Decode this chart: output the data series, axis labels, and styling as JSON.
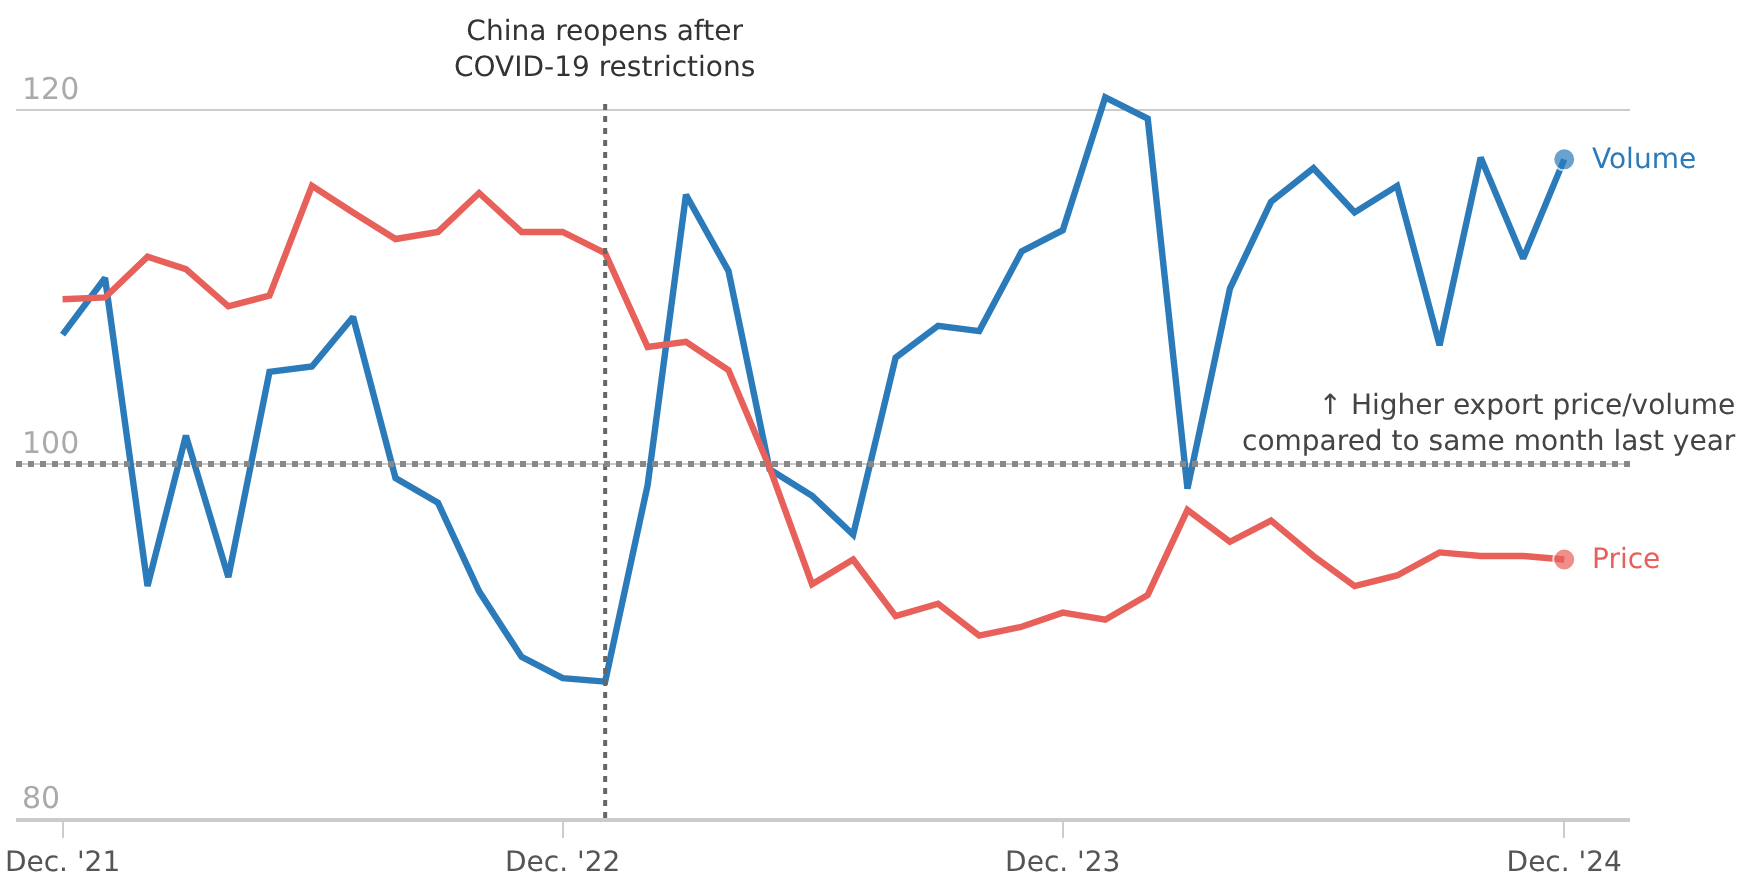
{
  "chart_data": {
    "type": "line",
    "x": [
      "2021-12",
      "2022-01",
      "2022-02",
      "2022-03",
      "2022-04",
      "2022-05",
      "2022-06",
      "2022-07",
      "2022-08",
      "2022-09",
      "2022-10",
      "2022-11",
      "2022-12",
      "2023-01",
      "2023-02",
      "2023-03",
      "2023-04",
      "2023-05",
      "2023-06",
      "2023-07",
      "2023-08",
      "2023-09",
      "2023-10",
      "2023-11",
      "2023-12",
      "2024-01",
      "2024-02",
      "2024-03",
      "2024-04",
      "2024-05",
      "2024-06",
      "2024-07",
      "2024-08",
      "2024-09",
      "2024-10",
      "2024-11",
      "2024-12"
    ],
    "series": [
      {
        "name": "Volume",
        "color": "#2b7bba",
        "values": [
          107.3,
          110.5,
          93.1,
          101.6,
          93.6,
          105.2,
          105.5,
          108.3,
          99.2,
          97.8,
          92.8,
          89.1,
          87.9,
          87.7,
          98.8,
          115.2,
          110.9,
          99.7,
          98.2,
          96.0,
          106.0,
          107.8,
          107.5,
          112.0,
          113.2,
          120.7,
          119.5,
          98.6,
          109.9,
          114.8,
          116.7,
          114.2,
          115.7,
          106.7,
          117.3,
          111.6,
          117.2
        ]
      },
      {
        "name": "Price",
        "color": "#e8605a",
        "values": [
          109.3,
          109.4,
          111.7,
          111.0,
          108.9,
          109.5,
          115.7,
          114.2,
          112.7,
          113.1,
          115.3,
          113.1,
          113.1,
          111.9,
          106.6,
          106.9,
          105.3,
          99.8,
          93.2,
          94.6,
          91.4,
          92.1,
          90.3,
          90.8,
          91.6,
          91.2,
          92.6,
          97.4,
          95.6,
          96.8,
          94.8,
          93.1,
          93.7,
          95.0,
          94.8,
          94.8,
          94.6
        ]
      }
    ],
    "xlim": [
      "2021-10-28",
      "2025-01-18"
    ],
    "xticks": [
      {
        "value": "2021-12",
        "label": "Dec. '21"
      },
      {
        "value": "2022-12",
        "label": "Dec. '22"
      },
      {
        "value": "2023-12",
        "label": "Dec. '23"
      },
      {
        "value": "2024-12",
        "label": "Dec. '24"
      }
    ],
    "ylim": [
      80,
      126.2
    ],
    "yticks": [
      80,
      100,
      120
    ],
    "grid": "y",
    "legend": false,
    "marker": "none",
    "line_style": "solid",
    "ref_lines": [
      {
        "axis": "x",
        "value": "2023-01",
        "label": "China reopens after\nCOVID-19 restrictions",
        "color": "#666666",
        "line_style": "dotted"
      },
      {
        "axis": "y",
        "value": 100,
        "label": "↑ Higher export price/volume\ncompared to same month last year",
        "color": "#888888",
        "line_style": "dotted"
      }
    ]
  }
}
